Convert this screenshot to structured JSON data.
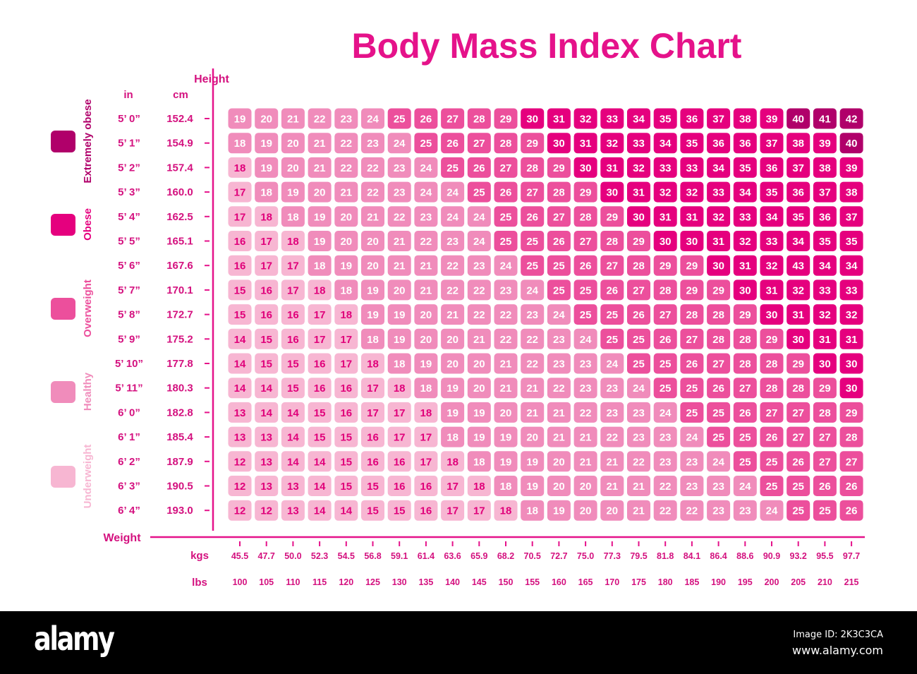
{
  "chart_data": {
    "type": "heatmap",
    "title": "Body Mass Index Chart",
    "y_axis_title": "Height",
    "y_unit_labels": [
      "in",
      "cm"
    ],
    "x_axis_title": "Weight",
    "x_unit_labels": [
      "kgs",
      "lbs"
    ],
    "heights_in": [
      "5’ 0”",
      "5’ 1”",
      "5’ 2”",
      "5’ 3”",
      "5’ 4”",
      "5’ 5”",
      "5’ 6”",
      "5’ 7”",
      "5’ 8”",
      "5’ 9”",
      "5’ 10”",
      "5’ 11”",
      "6’ 0”",
      "6’ 1”",
      "6’ 2”",
      "6’ 3”",
      "6’ 4”"
    ],
    "heights_cm": [
      "152.4",
      "154.9",
      "157.4",
      "160.0",
      "162.5",
      "165.1",
      "167.6",
      "170.1",
      "172.7",
      "175.2",
      "177.8",
      "180.3",
      "182.8",
      "185.4",
      "187.9",
      "190.5",
      "193.0"
    ],
    "weights_kg": [
      "45.5",
      "47.7",
      "50.0",
      "52.3",
      "54.5",
      "56.8",
      "59.1",
      "61.4",
      "63.6",
      "65.9",
      "68.2",
      "70.5",
      "72.7",
      "75.0",
      "77.3",
      "79.5",
      "81.8",
      "84.1",
      "86.4",
      "88.6",
      "90.9",
      "93.2",
      "95.5",
      "97.7"
    ],
    "weights_lbs": [
      "100",
      "105",
      "110",
      "115",
      "120",
      "125",
      "130",
      "135",
      "140",
      "145",
      "150",
      "155",
      "160",
      "165",
      "170",
      "175",
      "180",
      "185",
      "190",
      "195",
      "200",
      "205",
      "210",
      "215"
    ],
    "values": [
      [
        19,
        20,
        21,
        22,
        23,
        24,
        25,
        26,
        27,
        28,
        29,
        30,
        31,
        32,
        33,
        34,
        35,
        36,
        37,
        38,
        39,
        40,
        41,
        42
      ],
      [
        18,
        19,
        20,
        21,
        22,
        23,
        24,
        25,
        26,
        27,
        28,
        29,
        30,
        31,
        32,
        33,
        34,
        35,
        36,
        36,
        37,
        38,
        39,
        40
      ],
      [
        18,
        19,
        20,
        21,
        22,
        22,
        23,
        24,
        25,
        26,
        27,
        28,
        29,
        30,
        31,
        32,
        33,
        33,
        34,
        35,
        36,
        37,
        38,
        39
      ],
      [
        17,
        18,
        19,
        20,
        21,
        22,
        23,
        24,
        24,
        25,
        26,
        27,
        28,
        29,
        30,
        31,
        32,
        32,
        33,
        34,
        35,
        36,
        37,
        38
      ],
      [
        17,
        18,
        18,
        19,
        20,
        21,
        22,
        23,
        24,
        24,
        25,
        26,
        27,
        28,
        29,
        30,
        31,
        31,
        32,
        33,
        34,
        35,
        36,
        37
      ],
      [
        16,
        17,
        18,
        19,
        20,
        20,
        21,
        22,
        23,
        24,
        25,
        25,
        26,
        27,
        28,
        29,
        30,
        30,
        31,
        32,
        33,
        34,
        35,
        35
      ],
      [
        16,
        17,
        17,
        18,
        19,
        20,
        21,
        21,
        22,
        23,
        24,
        25,
        25,
        26,
        27,
        28,
        29,
        29,
        30,
        31,
        32,
        43,
        34,
        34
      ],
      [
        15,
        16,
        17,
        18,
        18,
        19,
        20,
        21,
        22,
        22,
        23,
        24,
        25,
        25,
        26,
        27,
        28,
        29,
        29,
        30,
        31,
        32,
        33,
        33
      ],
      [
        15,
        16,
        16,
        17,
        18,
        19,
        19,
        20,
        21,
        22,
        22,
        23,
        24,
        25,
        25,
        26,
        27,
        28,
        28,
        29,
        30,
        31,
        32,
        32
      ],
      [
        14,
        15,
        16,
        17,
        17,
        18,
        19,
        20,
        20,
        21,
        22,
        22,
        23,
        24,
        25,
        25,
        26,
        27,
        28,
        28,
        29,
        30,
        31,
        31
      ],
      [
        14,
        15,
        15,
        16,
        17,
        18,
        18,
        19,
        20,
        20,
        21,
        22,
        23,
        23,
        24,
        25,
        25,
        26,
        27,
        28,
        28,
        29,
        30,
        30
      ],
      [
        14,
        14,
        15,
        16,
        16,
        17,
        18,
        18,
        19,
        20,
        21,
        21,
        22,
        23,
        23,
        24,
        25,
        25,
        26,
        27,
        28,
        28,
        29,
        30
      ],
      [
        13,
        14,
        14,
        15,
        16,
        17,
        17,
        18,
        19,
        19,
        20,
        21,
        21,
        22,
        23,
        23,
        24,
        25,
        25,
        26,
        27,
        27,
        28,
        29
      ],
      [
        13,
        13,
        14,
        15,
        15,
        16,
        17,
        17,
        18,
        19,
        19,
        20,
        21,
        21,
        22,
        23,
        23,
        24,
        25,
        25,
        26,
        27,
        27,
        28
      ],
      [
        12,
        13,
        14,
        14,
        15,
        16,
        16,
        17,
        18,
        18,
        19,
        19,
        20,
        21,
        21,
        22,
        23,
        23,
        24,
        25,
        25,
        26,
        27,
        27
      ],
      [
        12,
        13,
        13,
        14,
        15,
        15,
        16,
        16,
        17,
        18,
        18,
        19,
        20,
        20,
        21,
        21,
        22,
        23,
        23,
        24,
        25,
        25,
        26,
        26
      ],
      [
        12,
        12,
        13,
        14,
        14,
        15,
        15,
        16,
        17,
        17,
        18,
        18,
        19,
        20,
        20,
        21,
        22,
        22,
        23,
        23,
        24,
        25,
        25,
        26
      ]
    ],
    "category_grid": [
      "HHHHHHOOOOOBBBBBBBBBBEEE",
      "HHHHHHHOOOOOBBBBBBBBBBBE",
      "UHHHHHHHOOOOOBBBBBBBBBBB",
      "UHHHHHHHHOOOOOBBBBBBBBBB",
      "UUHHHHHHHHOOOOOBBBBBBBBB",
      "UUUHHHHHHHOOOOOOBBBBBBBB",
      "UUUHHHHHHHHOOOOOOOBBBBBB",
      "UUUUHHHHHHHHOOOOOOOBBBBB",
      "UUUUUHHHHHHHHOOOOOOOBBBB",
      "UUUUUHHHHHHHHHOOOOOOOBBB",
      "UUUUUUHHHHHHHHHOOOOOOOBB",
      "UUUUUUUHHHHHHHHHOOOOOOOB",
      "UUUUUUUUHHHHHHHHHOOOOOOO",
      "UUUUUUUUHHHHHHHHHHOOOOOO",
      "UUUUUUUUUHHHHHHHHHHOOOOO",
      "UUUUUUUUUUHHHHHHHHHHOOOO",
      "UUUUUUUUUUUHHHHHHHHHHOOO"
    ],
    "legend": [
      {
        "key": "E",
        "label": "Extremely obese",
        "color": "#b0006a"
      },
      {
        "key": "B",
        "label": "Obese",
        "color": "#e5007e"
      },
      {
        "key": "O",
        "label": "Overweight",
        "color": "#ec4f9c"
      },
      {
        "key": "H",
        "label": "Healthy",
        "color": "#f08cbb"
      },
      {
        "key": "U",
        "label": "Underweight",
        "color": "#f7b6d2"
      }
    ],
    "legend_placement": "left",
    "accent_color": "#e5128a",
    "underweight_text_color": "#e0007a"
  },
  "footer": {
    "logo": "alamy",
    "image_id": "Image ID: 2K3C3CA",
    "site": "www.alamy.com"
  }
}
